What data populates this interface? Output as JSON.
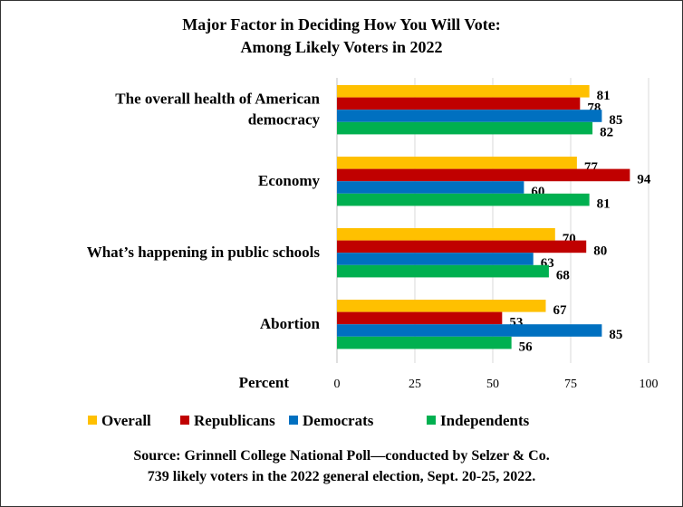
{
  "chart_data": {
    "type": "bar",
    "orientation": "horizontal",
    "title": [
      "Major Factor in Deciding How You Will Vote:",
      "Among Likely Voters in 2022"
    ],
    "xlabel": "Percent",
    "xlim": [
      0,
      100
    ],
    "xticks": [
      "0",
      "25",
      "50",
      "75",
      "100"
    ],
    "grid": true,
    "legend_position": "bottom",
    "categories": [
      "The overall health of American democracy",
      "Economy",
      "What’s happening in public schools",
      "Abortion"
    ],
    "category_lines": [
      [
        "The overall health of American",
        "democracy"
      ],
      [
        "Economy"
      ],
      [
        "What’s happening in public schools"
      ],
      [
        "Abortion"
      ]
    ],
    "series": [
      {
        "name": "Overall",
        "color": "#FFC000",
        "values": [
          81,
          77,
          70,
          67
        ]
      },
      {
        "name": "Republicans",
        "color": "#C00000",
        "values": [
          78,
          94,
          80,
          53
        ]
      },
      {
        "name": "Democrats",
        "color": "#0070C0",
        "values": [
          85,
          60,
          63,
          85
        ]
      },
      {
        "name": "Independents",
        "color": "#00B050",
        "values": [
          82,
          81,
          68,
          56
        ]
      }
    ],
    "source": [
      "Source: Grinnell College National Poll—conducted by Selzer & Co.",
      "739 likely voters in the 2022 general election, Sept. 20-25, 2022."
    ]
  }
}
